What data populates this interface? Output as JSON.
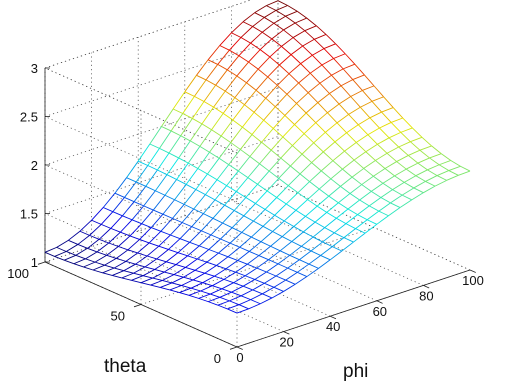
{
  "chart_data": {
    "type": "surface",
    "title": "",
    "xlabel": "phi",
    "ylabel": "theta",
    "zlabel": "",
    "xlim": [
      0,
      100
    ],
    "ylim": [
      0,
      100
    ],
    "zlim": [
      1,
      3
    ],
    "x_ticks": [
      "0",
      "20",
      "40",
      "60",
      "80",
      "100"
    ],
    "y_ticks": [
      "0",
      "50",
      "100"
    ],
    "z_ticks": [
      "1",
      "1.5",
      "2",
      "2.5",
      "3"
    ],
    "grid": true,
    "mesh_resolution": 20,
    "z_corners": {
      "phi0_theta0": 1.35,
      "phi100_theta0": 2.02,
      "phi0_theta100": 1.1,
      "phi100_theta100": 2.9
    },
    "colormap": "jet",
    "colors": {
      "low": "#0000c0",
      "mid": "#00ffff",
      "high": "#ff0000"
    }
  }
}
